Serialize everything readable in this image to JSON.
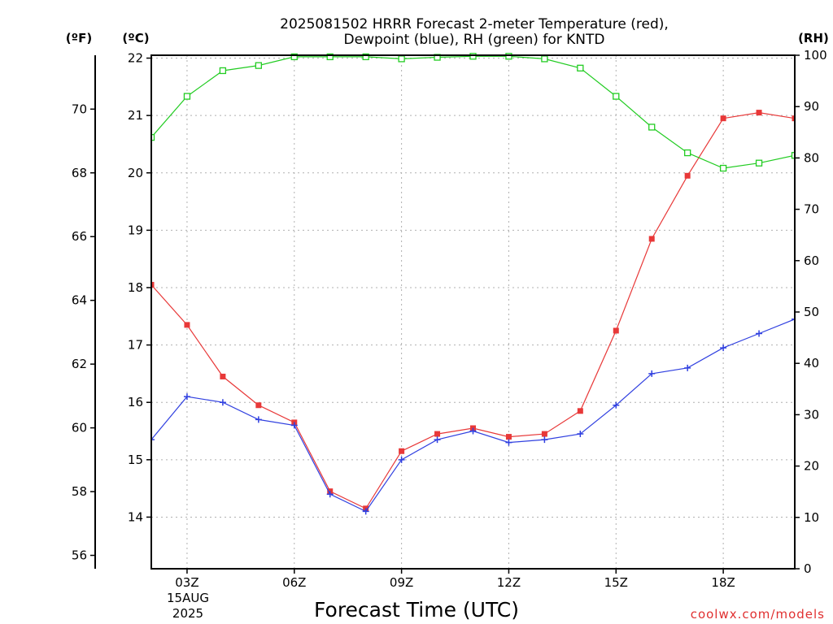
{
  "chart_data": {
    "type": "line",
    "title_line1": "2025081502 HRRR Forecast 2-meter Temperature (red),",
    "title_line2": "Dewpoint (blue), RH (green) for KNTD",
    "xlabel": "Forecast Time (UTC)",
    "x_ticks": [
      "03Z",
      "06Z",
      "09Z",
      "12Z",
      "15Z",
      "18Z"
    ],
    "x_tick_values": [
      3,
      6,
      9,
      12,
      15,
      18
    ],
    "date_label_line1": "15AUG",
    "date_label_line2": "2025",
    "xlim": [
      2,
      20
    ],
    "left_unit_f": "(ºF)",
    "left_unit_c": "(ºC)",
    "right_unit": "(RH)",
    "ylim_c": [
      13.1,
      22.05
    ],
    "ylim_rh": [
      0,
      100
    ],
    "c_ticks": [
      "14",
      "15",
      "16",
      "17",
      "18",
      "19",
      "20",
      "21",
      "22"
    ],
    "c_tick_values": [
      14,
      15,
      16,
      17,
      18,
      19,
      20,
      21,
      22
    ],
    "f_ticks": [
      "56",
      "58",
      "60",
      "62",
      "64",
      "66",
      "68",
      "70"
    ],
    "f_tick_values": [
      56,
      58,
      60,
      62,
      64,
      66,
      68,
      70
    ],
    "rh_ticks": [
      "0",
      "10",
      "20",
      "30",
      "40",
      "50",
      "60",
      "70",
      "80",
      "90",
      "100"
    ],
    "rh_tick_values": [
      0,
      10,
      20,
      30,
      40,
      50,
      60,
      70,
      80,
      90,
      100
    ],
    "grid": true,
    "x": [
      2,
      3,
      4,
      5,
      6,
      7,
      8,
      9,
      10,
      11,
      12,
      13,
      14,
      15,
      16,
      17,
      18,
      19,
      20
    ],
    "series": [
      {
        "name": "Temperature",
        "axis": "c",
        "color": "#e83838",
        "marker": "filled-square",
        "values": [
          18.05,
          17.35,
          16.45,
          15.95,
          15.65,
          14.45,
          14.15,
          15.15,
          15.45,
          15.55,
          15.4,
          15.45,
          15.85,
          17.25,
          18.85,
          19.95,
          20.95,
          21.05,
          20.95
        ]
      },
      {
        "name": "Dewpoint",
        "axis": "c",
        "color": "#3040e0",
        "marker": "plus",
        "values": [
          15.35,
          16.1,
          16.0,
          15.7,
          15.6,
          14.4,
          14.1,
          15.0,
          15.35,
          15.5,
          15.3,
          15.35,
          15.45,
          15.95,
          16.5,
          16.6,
          16.95,
          17.2,
          17.45
        ]
      },
      {
        "name": "RH",
        "axis": "rh",
        "color": "#22cc22",
        "marker": "open-square",
        "values": [
          84,
          92,
          97,
          98,
          99.7,
          99.7,
          99.7,
          99.3,
          99.6,
          99.8,
          99.8,
          99.3,
          97.5,
          92,
          86,
          81,
          78,
          79,
          80.5
        ]
      }
    ]
  },
  "credit": "coolwx.com/models"
}
